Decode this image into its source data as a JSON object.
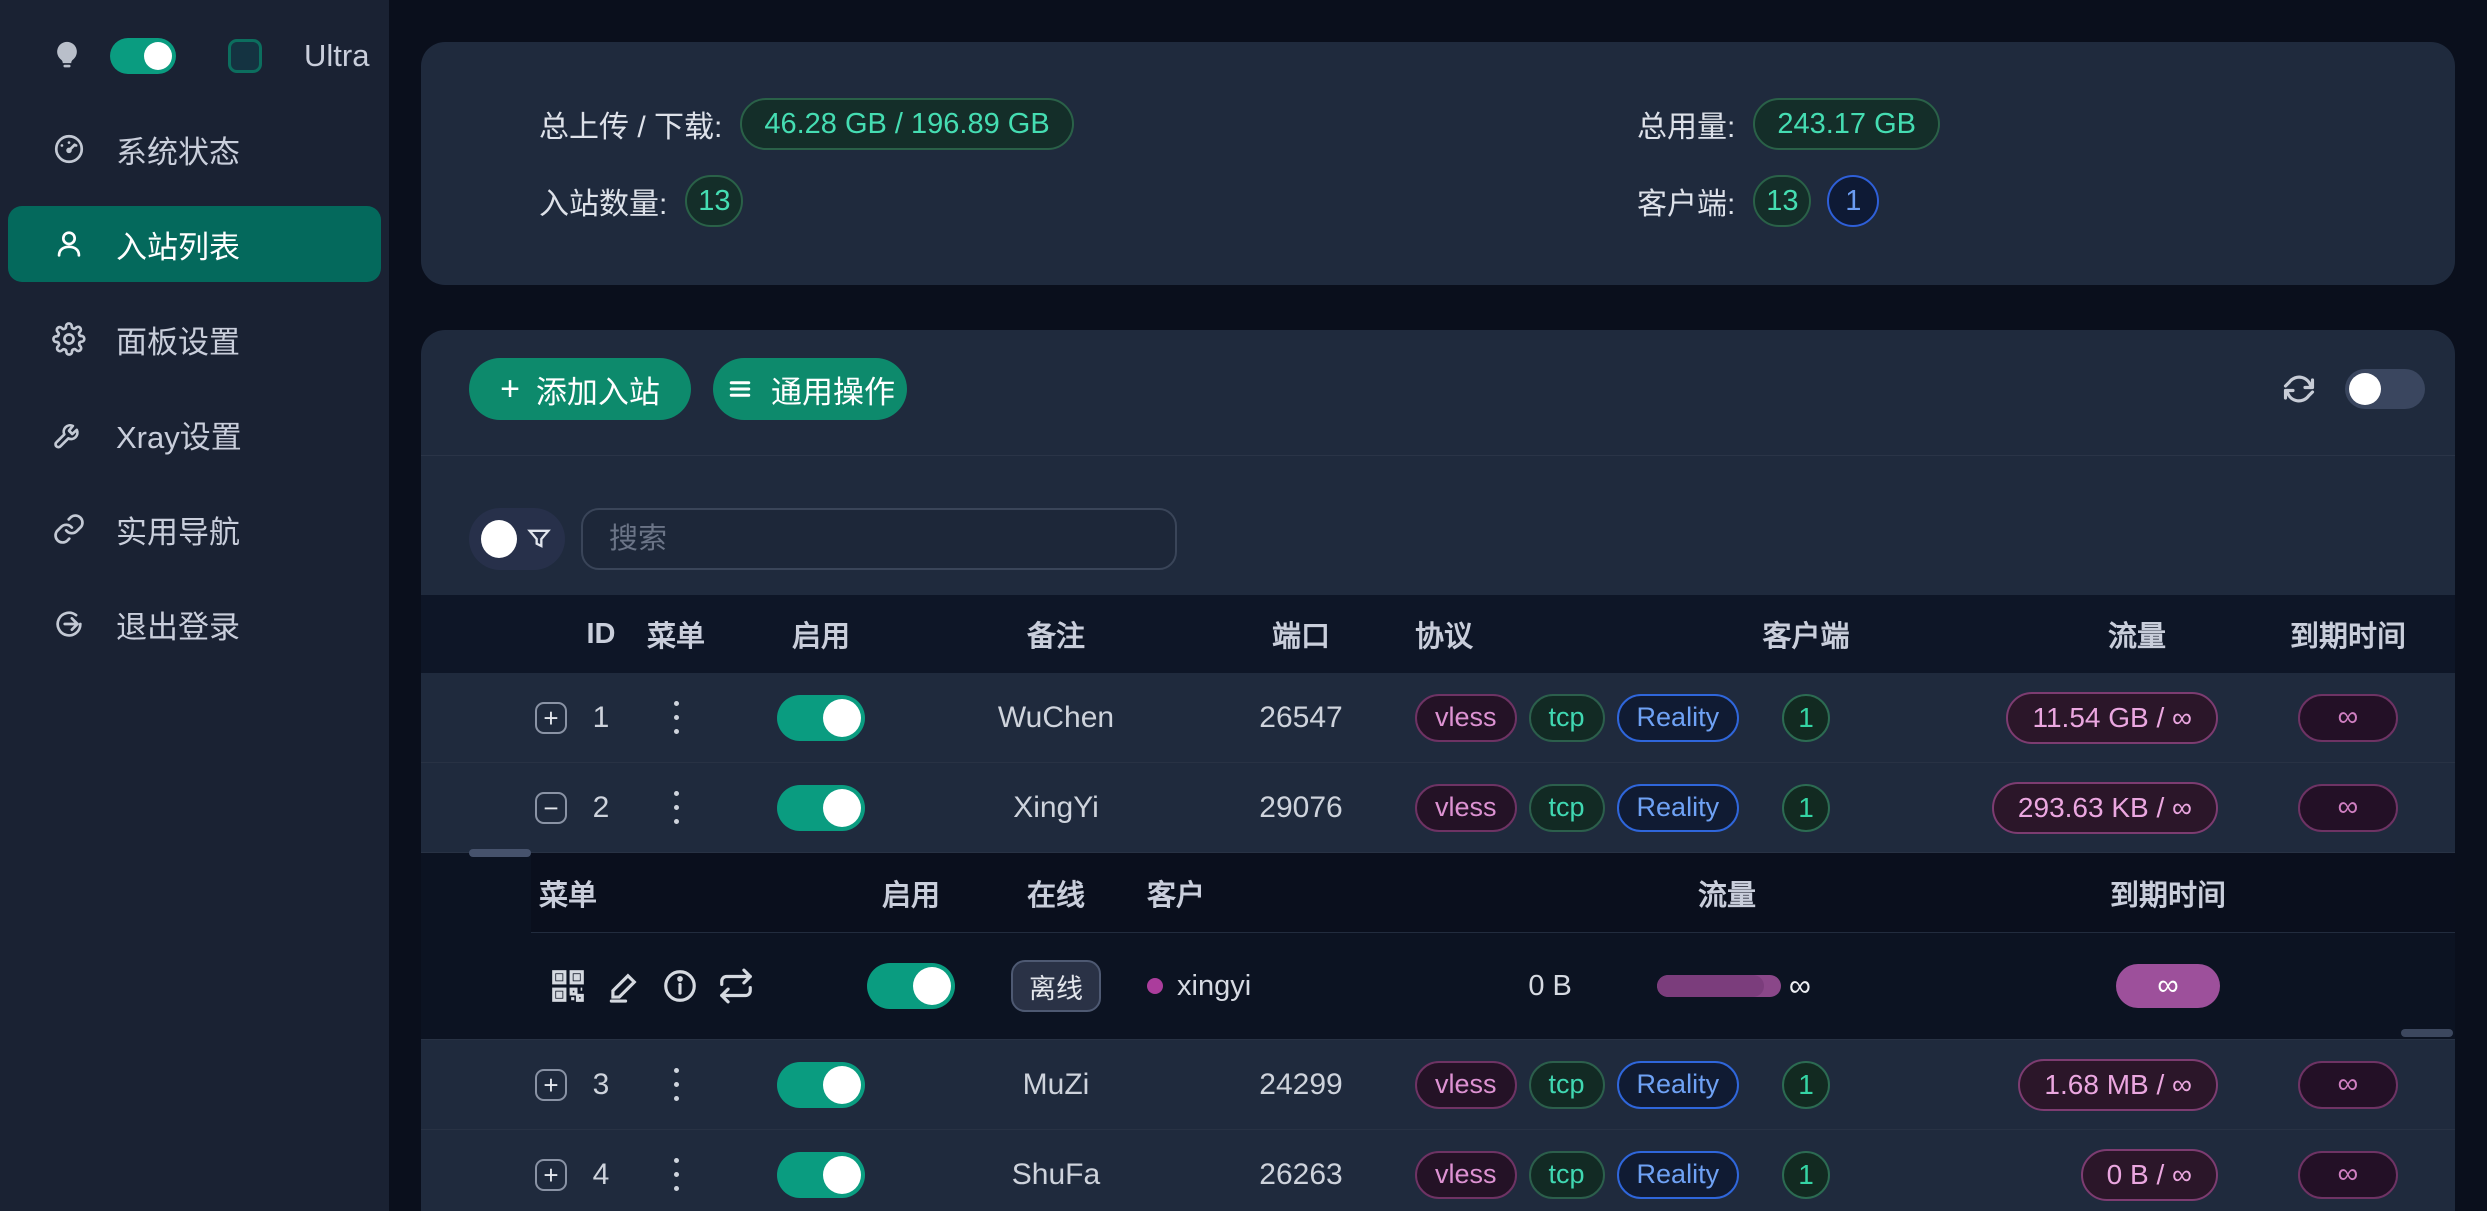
{
  "sidebar": {
    "ultra_label": "Ultra",
    "theme_toggle_on": true,
    "items": [
      {
        "label": "系统状态",
        "icon": "dashboard-icon",
        "active": false
      },
      {
        "label": "入站列表",
        "icon": "user-icon",
        "active": true
      },
      {
        "label": "面板设置",
        "icon": "gear-icon",
        "active": false
      },
      {
        "label": "Xray设置",
        "icon": "wrench-icon",
        "active": false
      },
      {
        "label": "实用导航",
        "icon": "link-icon",
        "active": false
      },
      {
        "label": "退出登录",
        "icon": "logout-icon",
        "active": false
      }
    ]
  },
  "stats": {
    "upload_download_label": "总上传 / 下载:",
    "upload_download_value": "46.28 GB / 196.89 GB",
    "total_usage_label": "总用量:",
    "total_usage_value": "243.17 GB",
    "inbound_count_label": "入站数量:",
    "inbound_count_value": "13",
    "clients_label": "客户端:",
    "clients_total": "13",
    "clients_online": "1"
  },
  "toolbar": {
    "add_inbound_label": "添加入站",
    "bulk_actions_label": "通用操作",
    "auto_refresh_on": false
  },
  "search": {
    "placeholder": "搜索"
  },
  "table": {
    "headers": [
      "ID",
      "菜单",
      "启用",
      "备注",
      "端口",
      "协议",
      "客户端",
      "流量",
      "到期时间"
    ],
    "rows": [
      {
        "id": "1",
        "enabled": true,
        "remark": "WuChen",
        "port": "26547",
        "protocols": [
          "vless",
          "tcp",
          "Reality"
        ],
        "clients": "1",
        "traffic": "11.54 GB / ∞",
        "expiry": "∞",
        "expanded": false
      },
      {
        "id": "2",
        "enabled": true,
        "remark": "XingYi",
        "port": "29076",
        "protocols": [
          "vless",
          "tcp",
          "Reality"
        ],
        "clients": "1",
        "traffic": "293.63 KB / ∞",
        "expiry": "∞",
        "expanded": true
      },
      {
        "id": "3",
        "enabled": true,
        "remark": "MuZi",
        "port": "24299",
        "protocols": [
          "vless",
          "tcp",
          "Reality"
        ],
        "clients": "1",
        "traffic": "1.68 MB / ∞",
        "expiry": "∞",
        "expanded": false
      },
      {
        "id": "4",
        "enabled": true,
        "remark": "ShuFa",
        "port": "26263",
        "protocols": [
          "vless",
          "tcp",
          "Reality"
        ],
        "clients": "1",
        "traffic": "0 B / ∞",
        "expiry": "∞",
        "expanded": false
      }
    ]
  },
  "subtable": {
    "headers": [
      "菜单",
      "启用",
      "在线",
      "客户",
      "流量",
      "到期时间"
    ],
    "row": {
      "enabled": true,
      "status": "离线",
      "client": "xingyi",
      "traffic_used": "0 B",
      "traffic_limit": "∞",
      "expiry": "∞"
    }
  },
  "colors": {
    "accent_teal": "#0a9c80",
    "active_menu": "#04695c",
    "button_green": "#0d8a6c",
    "badge_green": "#45ddb2",
    "badge_blue": "#6b9cf2",
    "badge_pink": "#dd92d2",
    "progress_purple": "#9d509b"
  }
}
